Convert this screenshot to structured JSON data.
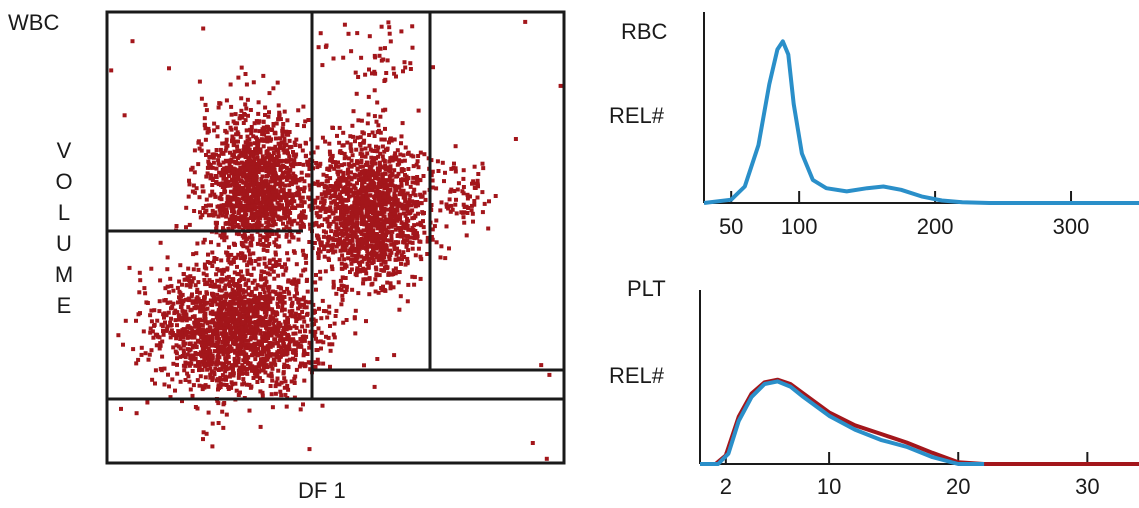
{
  "labels": {
    "wbc": "WBC",
    "volume_letters": [
      "V",
      "O",
      "L",
      "U",
      "M",
      "E"
    ],
    "df1": "DF 1",
    "rbc": "RBC",
    "rel_rbc": "REL#",
    "plt": "PLT",
    "rel_plt": "REL#"
  },
  "colors": {
    "dots": "#a3161b",
    "rbc_line": "#2a8fc9",
    "plt_red": "#a3161b",
    "plt_blue": "#2a8fc9",
    "axis": "#1a1a1a"
  },
  "chart_data": [
    {
      "type": "scatter",
      "title": "WBC",
      "xlabel": "DF 1",
      "ylabel": "VOLUME",
      "xlim": [
        0,
        100
      ],
      "ylim": [
        0,
        100
      ],
      "grid": false,
      "gates": "rectangular gating boxes separating clusters",
      "clusters": [
        {
          "name": "",
          "center": [
            32,
            62
          ],
          "spread": [
            6,
            8
          ],
          "count": 1400
        },
        {
          "name": "",
          "center": [
            57,
            56
          ],
          "spread": [
            6,
            8
          ],
          "count": 1500
        },
        {
          "name": "",
          "center": [
            28,
            30
          ],
          "spread": [
            9,
            7
          ],
          "count": 1800
        },
        {
          "name": "",
          "center": [
            78,
            60
          ],
          "spread": [
            2.5,
            4
          ],
          "count": 70
        },
        {
          "name": "",
          "center": [
            58,
            90
          ],
          "spread": [
            6,
            7
          ],
          "count": 60
        }
      ]
    },
    {
      "type": "line",
      "title": "RBC",
      "ylabel": "REL#",
      "xlabel": "",
      "x_ticks": [
        50,
        100,
        200,
        300
      ],
      "xlim": [
        30,
        350
      ],
      "ylim": [
        0,
        1
      ],
      "series": [
        {
          "name": "",
          "color": "#2a8fc9",
          "x": [
            30,
            50,
            60,
            70,
            78,
            84,
            88,
            92,
            96,
            102,
            110,
            120,
            135,
            150,
            162,
            175,
            190,
            205,
            220,
            240,
            280,
            320,
            350
          ],
          "y": [
            0.0,
            0.02,
            0.1,
            0.35,
            0.72,
            0.93,
            0.98,
            0.9,
            0.6,
            0.3,
            0.14,
            0.09,
            0.07,
            0.09,
            0.1,
            0.08,
            0.04,
            0.015,
            0.005,
            0.0,
            0.0,
            0.0,
            0.0
          ]
        }
      ]
    },
    {
      "type": "line",
      "title": "PLT",
      "ylabel": "REL#",
      "xlabel": "",
      "x_ticks": [
        2,
        10,
        20,
        30
      ],
      "xlim": [
        0,
        34
      ],
      "ylim": [
        0,
        1
      ],
      "series": [
        {
          "name": "",
          "color": "#a3161b",
          "x": [
            0,
            1.2,
            2,
            3,
            4,
            5,
            6,
            7,
            8,
            10,
            12,
            14,
            16,
            18,
            20,
            22,
            25,
            28,
            31,
            34
          ],
          "y": [
            0,
            0,
            0.1,
            0.55,
            0.82,
            0.95,
            0.98,
            0.93,
            0.82,
            0.6,
            0.45,
            0.35,
            0.25,
            0.13,
            0.02,
            0.0,
            0.0,
            0.0,
            0.0,
            0.0
          ]
        },
        {
          "name": "",
          "color": "#2a8fc9",
          "x": [
            0,
            1.4,
            2.2,
            3,
            4,
            5,
            6,
            7,
            8,
            10,
            12,
            14,
            16,
            18,
            20,
            22
          ],
          "y": [
            0,
            0,
            0.12,
            0.5,
            0.78,
            0.93,
            0.96,
            0.9,
            0.78,
            0.56,
            0.4,
            0.28,
            0.2,
            0.08,
            0.0,
            0.0
          ]
        }
      ]
    }
  ]
}
